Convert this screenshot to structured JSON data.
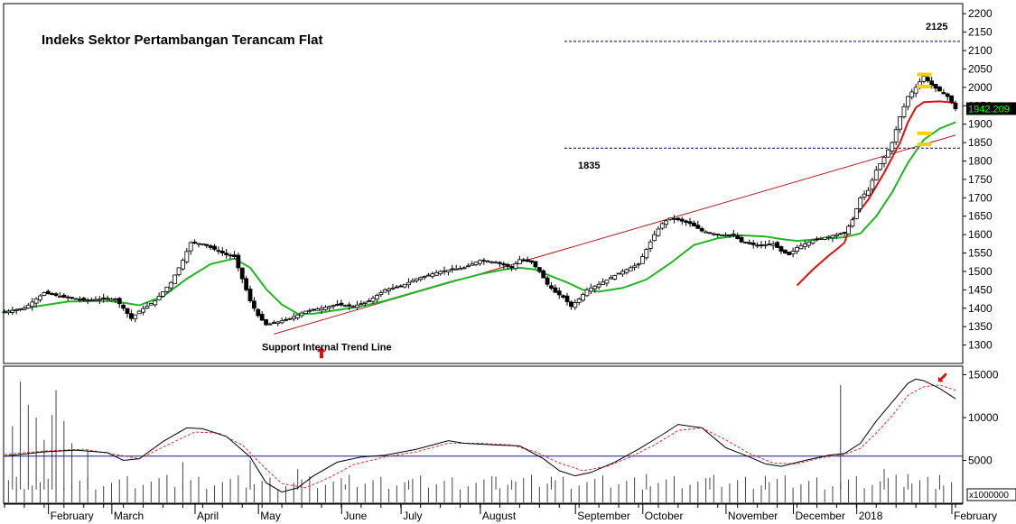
{
  "chart_data": [
    {
      "type": "candlestick",
      "title": "Indeks Sektor Pertambangan Terancam Flat",
      "ylim": [
        1250,
        2225
      ],
      "y_ticks": [
        1300,
        1350,
        1400,
        1450,
        1500,
        1550,
        1600,
        1650,
        1700,
        1750,
        1800,
        1850,
        1900,
        1950,
        2000,
        2050,
        2100,
        2150,
        2200
      ],
      "y_tick_labels": [
        "1300",
        "1350",
        "1400",
        "1450",
        "1500",
        "1550",
        "1600",
        "1650",
        "1700",
        "1750",
        "1800",
        "1850",
        "1900",
        "1950",
        "2000",
        "2050",
        "2100",
        "2150",
        "2200"
      ],
      "last_price": "1942.209",
      "last_price_value": 1942.209,
      "price_path": [
        [
          0,
          1390
        ],
        [
          5,
          1400
        ],
        [
          10,
          1442
        ],
        [
          15,
          1430
        ],
        [
          20,
          1422
        ],
        [
          25,
          1425
        ],
        [
          28,
          1425
        ],
        [
          30,
          1400
        ],
        [
          32,
          1372
        ],
        [
          34,
          1392
        ],
        [
          38,
          1420
        ],
        [
          42,
          1470
        ],
        [
          45,
          1530
        ],
        [
          47,
          1578
        ],
        [
          50,
          1575
        ],
        [
          53,
          1560
        ],
        [
          56,
          1545
        ],
        [
          58,
          1540
        ],
        [
          60,
          1480
        ],
        [
          62,
          1420
        ],
        [
          64,
          1380
        ],
        [
          66,
          1355
        ],
        [
          68,
          1360
        ],
        [
          72,
          1372
        ],
        [
          76,
          1392
        ],
        [
          80,
          1400
        ],
        [
          84,
          1410
        ],
        [
          88,
          1405
        ],
        [
          92,
          1420
        ],
        [
          96,
          1450
        ],
        [
          100,
          1460
        ],
        [
          104,
          1480
        ],
        [
          110,
          1500
        ],
        [
          116,
          1510
        ],
        [
          120,
          1530
        ],
        [
          124,
          1525
        ],
        [
          128,
          1510
        ],
        [
          130,
          1532
        ],
        [
          133,
          1525
        ],
        [
          135,
          1500
        ],
        [
          137,
          1465
        ],
        [
          139,
          1443
        ],
        [
          141,
          1430
        ],
        [
          143,
          1405
        ],
        [
          145,
          1425
        ],
        [
          147,
          1450
        ],
        [
          150,
          1465
        ],
        [
          155,
          1495
        ],
        [
          160,
          1520
        ],
        [
          162,
          1560
        ],
        [
          164,
          1600
        ],
        [
          166,
          1630
        ],
        [
          168,
          1645
        ],
        [
          170,
          1640
        ],
        [
          173,
          1630
        ],
        [
          176,
          1610
        ],
        [
          180,
          1600
        ],
        [
          184,
          1598
        ],
        [
          186,
          1580
        ],
        [
          190,
          1570
        ],
        [
          194,
          1575
        ],
        [
          196,
          1555
        ],
        [
          198,
          1545
        ],
        [
          200,
          1565
        ],
        [
          204,
          1585
        ],
        [
          208,
          1595
        ],
        [
          212,
          1605
        ],
        [
          214,
          1640
        ],
        [
          216,
          1700
        ],
        [
          218,
          1720
        ],
        [
          220,
          1775
        ],
        [
          222,
          1810
        ],
        [
          224,
          1850
        ],
        [
          226,
          1920
        ],
        [
          228,
          1975
        ],
        [
          230,
          2000
        ],
        [
          232,
          2030
        ],
        [
          234,
          2005
        ],
        [
          236,
          1990
        ],
        [
          238,
          1975
        ],
        [
          240,
          1942
        ]
      ],
      "moving_average_long_path": [
        [
          0,
          1390
        ],
        [
          8,
          1405
        ],
        [
          16,
          1418
        ],
        [
          26,
          1420
        ],
        [
          30,
          1415
        ],
        [
          34,
          1408
        ],
        [
          40,
          1432
        ],
        [
          46,
          1480
        ],
        [
          52,
          1520
        ],
        [
          58,
          1535
        ],
        [
          62,
          1510
        ],
        [
          66,
          1452
        ],
        [
          70,
          1410
        ],
        [
          74,
          1385
        ],
        [
          78,
          1385
        ],
        [
          84,
          1395
        ],
        [
          90,
          1405
        ],
        [
          96,
          1420
        ],
        [
          104,
          1445
        ],
        [
          112,
          1470
        ],
        [
          120,
          1492
        ],
        [
          126,
          1505
        ],
        [
          130,
          1510
        ],
        [
          134,
          1505
        ],
        [
          138,
          1487
        ],
        [
          142,
          1470
        ],
        [
          146,
          1450
        ],
        [
          150,
          1445
        ],
        [
          156,
          1455
        ],
        [
          162,
          1478
        ],
        [
          168,
          1522
        ],
        [
          174,
          1572
        ],
        [
          180,
          1590
        ],
        [
          186,
          1598
        ],
        [
          192,
          1595
        ],
        [
          196,
          1588
        ],
        [
          200,
          1583
        ],
        [
          206,
          1588
        ],
        [
          212,
          1593
        ],
        [
          216,
          1603
        ],
        [
          220,
          1650
        ],
        [
          224,
          1715
        ],
        [
          228,
          1795
        ],
        [
          232,
          1858
        ],
        [
          236,
          1888
        ],
        [
          240,
          1905
        ]
      ],
      "moving_average_short_path": [
        [
          200,
          1462
        ],
        [
          204,
          1505
        ],
        [
          208,
          1543
        ],
        [
          210,
          1560
        ],
        [
          212,
          1578
        ],
        [
          214,
          1640
        ],
        [
          218,
          1695
        ],
        [
          222,
          1768
        ],
        [
          226,
          1850
        ],
        [
          228,
          1905
        ],
        [
          230,
          1945
        ],
        [
          232,
          1960
        ],
        [
          236,
          1962
        ],
        [
          240,
          1958
        ]
      ],
      "trend_line_path": [
        [
          68,
          1330
        ],
        [
          240,
          1870
        ]
      ],
      "horizontal_levels": [
        {
          "value": 2125,
          "label": "2125"
        },
        {
          "value": 1835,
          "label": "1835"
        }
      ],
      "annotations": [
        {
          "text": "Support Internal Trend Line",
          "x": 80,
          "y": 1305
        }
      ],
      "markers": [
        {
          "shape": "yellow-dash",
          "x": 231,
          "y": 2035
        },
        {
          "shape": "yellow-dash",
          "x": 231,
          "y": 2002
        },
        {
          "shape": "yellow-dash",
          "x": 231,
          "y": 1875
        },
        {
          "shape": "yellow-dash",
          "x": 231,
          "y": 1845
        },
        {
          "shape": "red-up-arrow",
          "x": 80,
          "y": 1340
        }
      ]
    },
    {
      "type": "line",
      "ylim": [
        0,
        16000
      ],
      "y_ticks": [
        5000,
        10000,
        15000
      ],
      "y_tick_labels": [
        "5000",
        "10000",
        "15000"
      ],
      "unit_label": "x1000000",
      "reference_line": 5500,
      "main_path": [
        [
          0,
          5500
        ],
        [
          10,
          6000
        ],
        [
          18,
          6200
        ],
        [
          26,
          5900
        ],
        [
          30,
          5000
        ],
        [
          34,
          5200
        ],
        [
          40,
          7200
        ],
        [
          46,
          8800
        ],
        [
          50,
          8700
        ],
        [
          56,
          7800
        ],
        [
          62,
          5400
        ],
        [
          66,
          2400
        ],
        [
          70,
          1300
        ],
        [
          74,
          1800
        ],
        [
          78,
          3200
        ],
        [
          84,
          4800
        ],
        [
          90,
          5400
        ],
        [
          96,
          5600
        ],
        [
          104,
          6300
        ],
        [
          112,
          7300
        ],
        [
          116,
          7000
        ],
        [
          124,
          6800
        ],
        [
          130,
          6700
        ],
        [
          136,
          5200
        ],
        [
          140,
          3800
        ],
        [
          144,
          3200
        ],
        [
          148,
          3600
        ],
        [
          154,
          4800
        ],
        [
          160,
          6300
        ],
        [
          166,
          8000
        ],
        [
          170,
          9200
        ],
        [
          176,
          8800
        ],
        [
          182,
          6500
        ],
        [
          188,
          5400
        ],
        [
          192,
          4600
        ],
        [
          196,
          4300
        ],
        [
          202,
          5000
        ],
        [
          208,
          5600
        ],
        [
          212,
          5800
        ],
        [
          216,
          7000
        ],
        [
          220,
          9600
        ],
        [
          224,
          11800
        ],
        [
          228,
          14000
        ],
        [
          230,
          14500
        ],
        [
          232,
          14300
        ],
        [
          236,
          13400
        ],
        [
          240,
          12200
        ]
      ],
      "signal_path": [
        [
          0,
          5700
        ],
        [
          10,
          6100
        ],
        [
          20,
          6300
        ],
        [
          28,
          5700
        ],
        [
          34,
          5200
        ],
        [
          42,
          7000
        ],
        [
          48,
          8300
        ],
        [
          54,
          8200
        ],
        [
          60,
          6800
        ],
        [
          66,
          4000
        ],
        [
          70,
          2300
        ],
        [
          76,
          1800
        ],
        [
          82,
          3000
        ],
        [
          88,
          4500
        ],
        [
          96,
          5400
        ],
        [
          104,
          6000
        ],
        [
          112,
          7000
        ],
        [
          120,
          7000
        ],
        [
          128,
          6800
        ],
        [
          134,
          6000
        ],
        [
          140,
          4700
        ],
        [
          146,
          3800
        ],
        [
          152,
          4300
        ],
        [
          158,
          5400
        ],
        [
          164,
          6800
        ],
        [
          170,
          8500
        ],
        [
          176,
          8800
        ],
        [
          182,
          7400
        ],
        [
          188,
          5800
        ],
        [
          194,
          4700
        ],
        [
          200,
          4600
        ],
        [
          206,
          5300
        ],
        [
          212,
          5700
        ],
        [
          216,
          6400
        ],
        [
          220,
          8200
        ],
        [
          224,
          10200
        ],
        [
          228,
          12600
        ],
        [
          232,
          13600
        ],
        [
          236,
          13800
        ],
        [
          240,
          13200
        ]
      ],
      "volume_bars": [
        {
          "x": 2,
          "value": 9000
        },
        {
          "x": 4,
          "value": 14200
        },
        {
          "x": 6,
          "value": 11500
        },
        {
          "x": 8,
          "value": 10000
        },
        {
          "x": 10,
          "value": 7400
        },
        {
          "x": 12,
          "value": 10300
        },
        {
          "x": 13,
          "value": 13200
        },
        {
          "x": 15,
          "value": 9600
        },
        {
          "x": 17,
          "value": 7000
        },
        {
          "x": 21,
          "value": 6200
        },
        {
          "x": 45,
          "value": 4800
        },
        {
          "x": 62,
          "value": 5000
        },
        {
          "x": 74,
          "value": 4000
        },
        {
          "x": 86,
          "value": 2200
        },
        {
          "x": 102,
          "value": 2700
        },
        {
          "x": 124,
          "value": 3100
        },
        {
          "x": 128,
          "value": 2700
        },
        {
          "x": 138,
          "value": 3100
        },
        {
          "x": 162,
          "value": 3400
        },
        {
          "x": 178,
          "value": 3000
        },
        {
          "x": 192,
          "value": 3200
        },
        {
          "x": 211,
          "value": 13800
        },
        {
          "x": 222,
          "value": 4000
        },
        {
          "x": 228,
          "value": 3400
        },
        {
          "x": 236,
          "value": 3300
        }
      ],
      "volume_base": 1600,
      "marker": {
        "shape": "red-down-left-arrow",
        "x": 237,
        "y": 14800
      }
    }
  ],
  "x_axis": {
    "range": [
      0,
      240
    ],
    "months": [
      {
        "label": "February",
        "x": 12
      },
      {
        "label": "March",
        "x": 28
      },
      {
        "label": "April",
        "x": 49
      },
      {
        "label": "May",
        "x": 65
      },
      {
        "label": "June",
        "x": 86
      },
      {
        "label": "July",
        "x": 101
      },
      {
        "label": "August",
        "x": 121
      },
      {
        "label": "September",
        "x": 145
      },
      {
        "label": "October",
        "x": 162
      },
      {
        "label": "November",
        "x": 183
      },
      {
        "label": "December",
        "x": 200
      },
      {
        "label": "2018",
        "x": 216
      },
      {
        "label": "February",
        "x": 240
      }
    ],
    "minor_ticks": [
      0,
      5,
      10,
      15,
      20,
      25,
      30,
      35,
      40,
      45,
      50,
      55,
      60,
      65,
      70,
      75,
      80,
      85,
      90,
      95,
      100,
      105,
      110,
      115,
      120,
      125,
      130,
      135,
      140,
      145,
      150,
      155,
      160,
      165,
      170,
      175,
      180,
      185,
      190,
      195,
      200,
      205,
      210,
      215,
      220,
      225,
      230,
      235,
      240
    ]
  },
  "colors": {
    "background": "#ffffff",
    "candle_up": "#ffffff",
    "candle_down": "#000000",
    "ma_long": "#22b522",
    "ma_short": "#dd1111",
    "trend_line": "#b41e1e",
    "level_line": "#000080",
    "reference_line": "#1a1a8c",
    "signal_line": "#e03030",
    "volume": "#444444",
    "marker_yellow": "#f5d000",
    "marker_red": "#e01010",
    "price_tag_bg": "#000000",
    "price_tag_fg": "#00ff00"
  }
}
